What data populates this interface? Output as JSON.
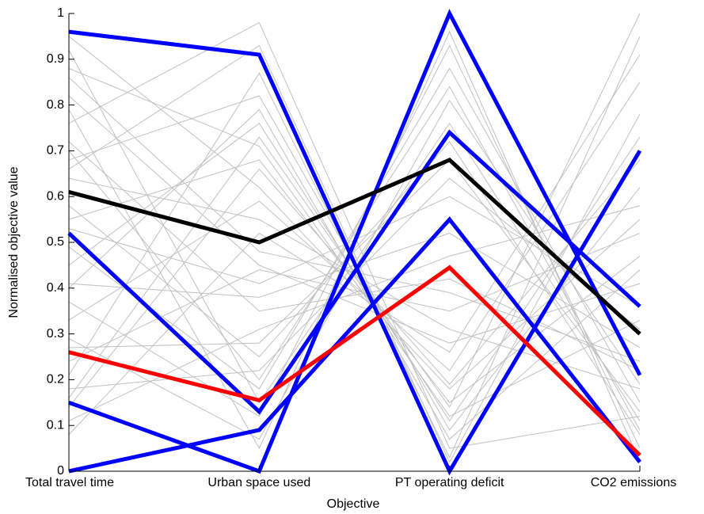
{
  "chart_data": {
    "type": "parallel",
    "xlabel": "Objective",
    "ylabel": "Normalised objective value",
    "categories": [
      "Total travel time",
      "Urban space used",
      "PT operating deficit",
      "CO2 emissions"
    ],
    "ylim": [
      0,
      1
    ],
    "yticks": [
      0,
      0.1,
      0.2,
      0.3,
      0.4,
      0.5,
      0.6,
      0.7,
      0.8,
      0.9,
      1
    ],
    "series": [
      {
        "color": "#c0c0c0",
        "values": [
          0.95,
          0.62,
          0.18,
          0.55
        ]
      },
      {
        "color": "#c0c0c0",
        "values": [
          0.88,
          0.71,
          0.12,
          0.33
        ]
      },
      {
        "color": "#c0c0c0",
        "values": [
          0.82,
          0.45,
          0.28,
          0.41
        ]
      },
      {
        "color": "#c0c0c0",
        "values": [
          0.76,
          0.98,
          0.05,
          0.12
        ]
      },
      {
        "color": "#c0c0c0",
        "values": [
          0.72,
          0.35,
          0.42,
          0.22
        ]
      },
      {
        "color": "#c0c0c0",
        "values": [
          0.68,
          0.82,
          0.09,
          0.62
        ]
      },
      {
        "color": "#c0c0c0",
        "values": [
          0.64,
          0.55,
          0.31,
          0.18
        ]
      },
      {
        "color": "#c0c0c0",
        "values": [
          0.58,
          0.25,
          0.72,
          0.08
        ]
      },
      {
        "color": "#c0c0c0",
        "values": [
          0.55,
          0.68,
          0.15,
          0.47
        ]
      },
      {
        "color": "#c0c0c0",
        "values": [
          0.49,
          0.18,
          0.88,
          0.15
        ]
      },
      {
        "color": "#c0c0c0",
        "values": [
          0.45,
          0.76,
          0.11,
          0.73
        ]
      },
      {
        "color": "#c0c0c0",
        "values": [
          0.41,
          0.38,
          0.52,
          0.27
        ]
      },
      {
        "color": "#c0c0c0",
        "values": [
          0.37,
          0.12,
          0.93,
          0.05
        ]
      },
      {
        "color": "#c0c0c0",
        "values": [
          0.33,
          0.59,
          0.22,
          0.85
        ]
      },
      {
        "color": "#c0c0c0",
        "values": [
          0.29,
          0.07,
          0.81,
          0.19
        ]
      },
      {
        "color": "#c0c0c0",
        "values": [
          0.24,
          0.44,
          0.35,
          0.52
        ]
      },
      {
        "color": "#c0c0c0",
        "values": [
          0.21,
          0.87,
          0.03,
          0.95
        ]
      },
      {
        "color": "#c0c0c0",
        "values": [
          0.18,
          0.22,
          0.64,
          0.31
        ]
      },
      {
        "color": "#c0c0c0",
        "values": [
          0.14,
          0.66,
          0.19,
          0.68
        ]
      },
      {
        "color": "#c0c0c0",
        "values": [
          0.11,
          0.31,
          0.47,
          0.58
        ]
      },
      {
        "color": "#c0c0c0",
        "values": [
          0.08,
          0.52,
          0.26,
          0.91
        ]
      },
      {
        "color": "#c0c0c0",
        "values": [
          0.92,
          0.15,
          0.76,
          0.11
        ]
      },
      {
        "color": "#c0c0c0",
        "values": [
          0.79,
          0.05,
          0.96,
          0.02
        ]
      },
      {
        "color": "#c0c0c0",
        "values": [
          0.66,
          0.93,
          0.02,
          0.78
        ]
      },
      {
        "color": "#c0c0c0",
        "values": [
          0.53,
          0.41,
          0.6,
          0.36
        ]
      },
      {
        "color": "#c0c0c0",
        "values": [
          0.86,
          0.48,
          0.39,
          0.24
        ]
      },
      {
        "color": "#c0c0c0",
        "values": [
          0.4,
          0.79,
          0.07,
          0.44
        ]
      },
      {
        "color": "#c0c0c0",
        "values": [
          0.27,
          0.28,
          0.68,
          0.13
        ]
      },
      {
        "color": "#c0c0c0",
        "values": [
          0.7,
          0.2,
          0.84,
          0.09
        ]
      },
      {
        "color": "#c0c0c0",
        "values": [
          0.16,
          0.73,
          0.14,
          1.0
        ]
      },
      {
        "color": "#0000ff",
        "values": [
          0.96,
          0.91,
          0.0,
          0.7
        ]
      },
      {
        "color": "#0000ff",
        "values": [
          0.52,
          0.13,
          0.74,
          0.36
        ]
      },
      {
        "color": "#0000ff",
        "values": [
          0.15,
          0.0,
          1.0,
          0.21
        ]
      },
      {
        "color": "#0000ff",
        "values": [
          0.0,
          0.09,
          0.55,
          0.02
        ]
      },
      {
        "color": "#000000",
        "values": [
          0.61,
          0.5,
          0.68,
          0.3
        ]
      },
      {
        "color": "#ff0000",
        "values": [
          0.26,
          0.155,
          0.445,
          0.035
        ]
      }
    ]
  }
}
